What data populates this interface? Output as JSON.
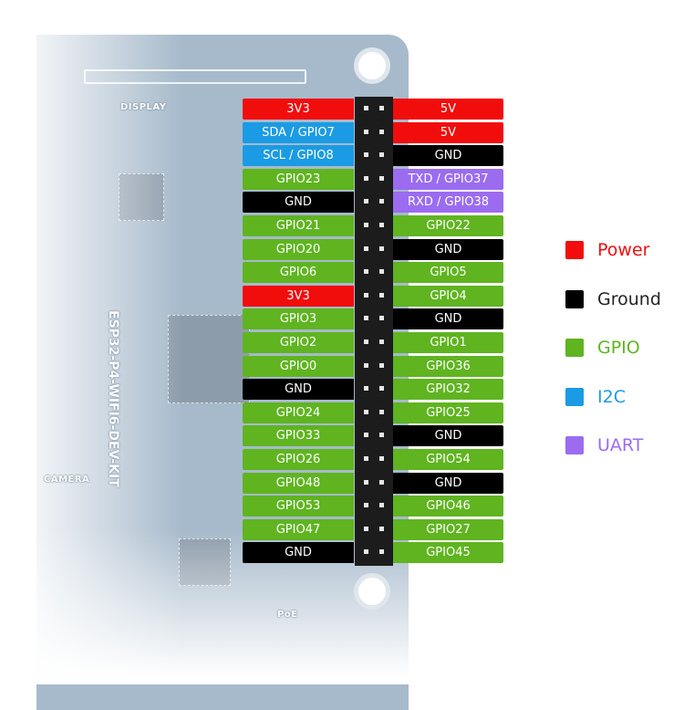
{
  "colors": {
    "Power": "#f20d0d",
    "Ground": "#000000",
    "GPIO": "#5fb420",
    "I2C": "#1b9be3",
    "UART": "#9b6cf0"
  },
  "board": {
    "name": "ESP32-P4-WIFI6-DEV-KIT",
    "silk": {
      "display": "DISPLAY",
      "camera": "CAMERA",
      "poe": "PoE"
    }
  },
  "pins": [
    {
      "left": "3V3",
      "left_type": "Power",
      "right": "5V",
      "right_type": "Power"
    },
    {
      "left": "SDA / GPIO7",
      "left_type": "I2C",
      "right": "5V",
      "right_type": "Power"
    },
    {
      "left": "SCL / GPIO8",
      "left_type": "I2C",
      "right": "GND",
      "right_type": "Ground"
    },
    {
      "left": "GPIO23",
      "left_type": "GPIO",
      "right": "TXD / GPIO37",
      "right_type": "UART"
    },
    {
      "left": "GND",
      "left_type": "Ground",
      "right": "RXD / GPIO38",
      "right_type": "UART"
    },
    {
      "left": "GPIO21",
      "left_type": "GPIO",
      "right": "GPIO22",
      "right_type": "GPIO"
    },
    {
      "left": "GPIO20",
      "left_type": "GPIO",
      "right": "GND",
      "right_type": "Ground"
    },
    {
      "left": "GPIO6",
      "left_type": "GPIO",
      "right": "GPIO5",
      "right_type": "GPIO"
    },
    {
      "left": "3V3",
      "left_type": "Power",
      "right": "GPIO4",
      "right_type": "GPIO"
    },
    {
      "left": "GPIO3",
      "left_type": "GPIO",
      "right": "GND",
      "right_type": "Ground"
    },
    {
      "left": "GPIO2",
      "left_type": "GPIO",
      "right": "GPIO1",
      "right_type": "GPIO"
    },
    {
      "left": "GPIO0",
      "left_type": "GPIO",
      "right": "GPIO36",
      "right_type": "GPIO"
    },
    {
      "left": "GND",
      "left_type": "Ground",
      "right": "GPIO32",
      "right_type": "GPIO"
    },
    {
      "left": "GPIO24",
      "left_type": "GPIO",
      "right": "GPIO25",
      "right_type": "GPIO"
    },
    {
      "left": "GPIO33",
      "left_type": "GPIO",
      "right": "GND",
      "right_type": "Ground"
    },
    {
      "left": "GPIO26",
      "left_type": "GPIO",
      "right": "GPIO54",
      "right_type": "GPIO"
    },
    {
      "left": "GPIO48",
      "left_type": "GPIO",
      "right": "GND",
      "right_type": "Ground"
    },
    {
      "left": "GPIO53",
      "left_type": "GPIO",
      "right": "GPIO46",
      "right_type": "GPIO"
    },
    {
      "left": "GPIO47",
      "left_type": "GPIO",
      "right": "GPIO27",
      "right_type": "GPIO"
    },
    {
      "left": "GND",
      "left_type": "Ground",
      "right": "GPIO45",
      "right_type": "GPIO"
    }
  ],
  "legend": [
    {
      "label": "Power",
      "type": "Power"
    },
    {
      "label": "Ground",
      "type": "Ground"
    },
    {
      "label": "GPIO",
      "type": "GPIO"
    },
    {
      "label": "I2C",
      "type": "I2C"
    },
    {
      "label": "UART",
      "type": "UART"
    }
  ]
}
